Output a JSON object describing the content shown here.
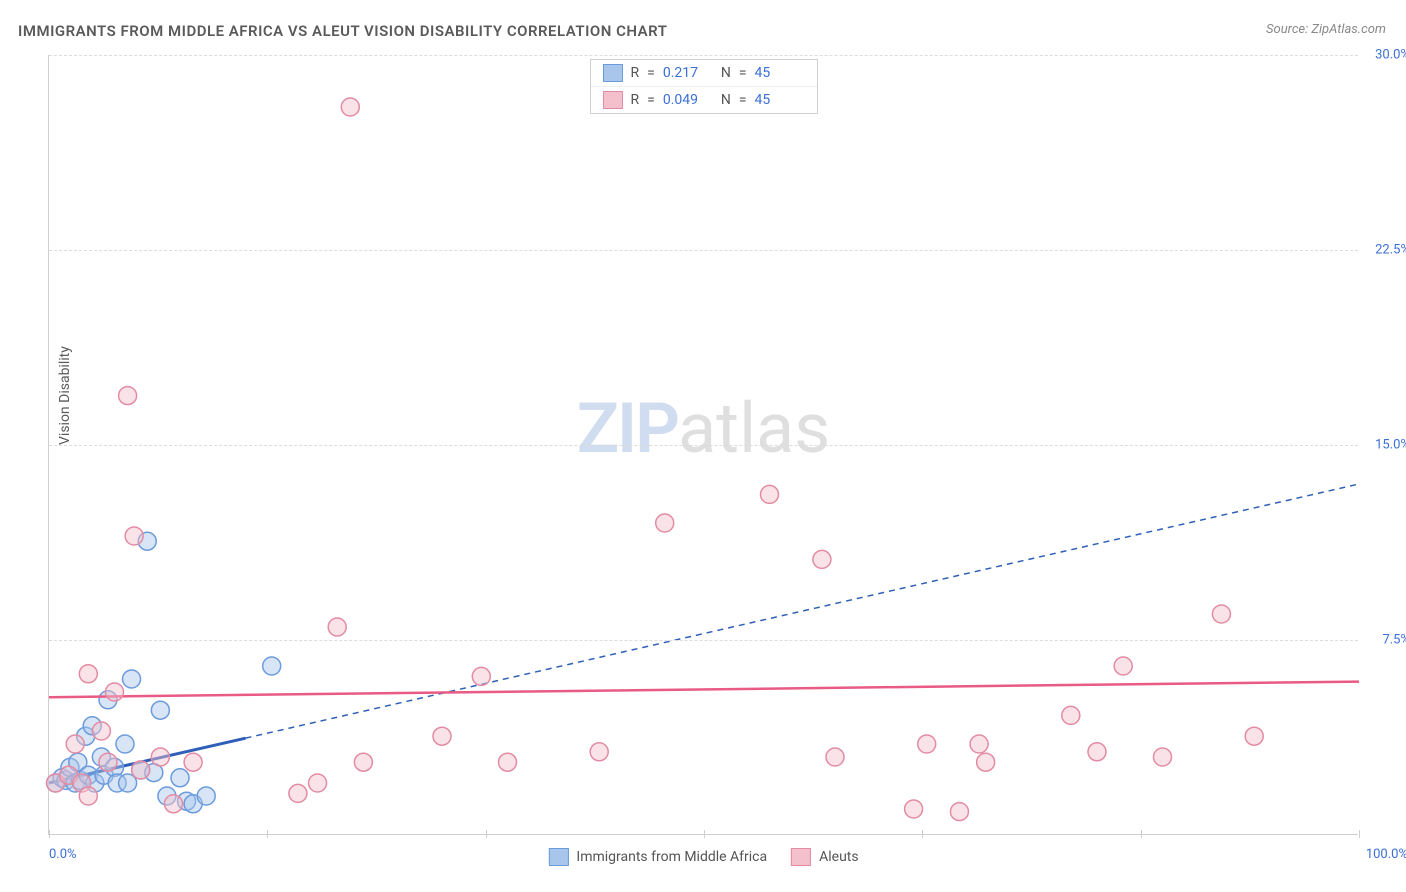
{
  "title": "IMMIGRANTS FROM MIDDLE AFRICA VS ALEUT VISION DISABILITY CORRELATION CHART",
  "source": "Source: ZipAtlas.com",
  "ylabel": "Vision Disability",
  "watermark": {
    "part1": "ZIP",
    "part2": "atlas"
  },
  "chart": {
    "type": "scatter",
    "xlim": [
      0,
      100
    ],
    "ylim": [
      0,
      30
    ],
    "xtick_labels": {
      "min": "0.0%",
      "max": "100.0%"
    },
    "xtick_positions": [
      0,
      16.67,
      33.33,
      50,
      66.67,
      83.33,
      100
    ],
    "ytick_labels": [
      "7.5%",
      "15.0%",
      "22.5%",
      "30.0%"
    ],
    "ytick_positions": [
      7.5,
      15,
      22.5,
      30
    ],
    "grid_color": "#dcdcdc",
    "axis_color": "#cfcfcf",
    "background_color": "#ffffff",
    "tick_label_color": "#3b6fd6",
    "axis_label_color": "#5a5a5a",
    "marker_radius": 9,
    "marker_stroke_width": 1.5,
    "marker_fill_opacity": 0.25
  },
  "series": [
    {
      "name": "Immigrants from Middle Africa",
      "color_fill": "#a8c5ec",
      "color_stroke": "#6b9bdc",
      "r": "0.217",
      "n": "45",
      "trend": {
        "x1": 0,
        "y1": 2.0,
        "x2": 100,
        "y2": 13.5,
        "solid_until_x": 15,
        "color": "#2f5fb8",
        "width": 2
      },
      "points": [
        [
          0.5,
          2.0
        ],
        [
          1.0,
          2.2
        ],
        [
          1.3,
          2.1
        ],
        [
          1.6,
          2.6
        ],
        [
          2.0,
          2.0
        ],
        [
          2.2,
          2.8
        ],
        [
          2.4,
          2.1
        ],
        [
          2.8,
          3.8
        ],
        [
          3.0,
          2.3
        ],
        [
          3.3,
          4.2
        ],
        [
          3.5,
          2.0
        ],
        [
          4.0,
          3.0
        ],
        [
          4.2,
          2.3
        ],
        [
          4.5,
          5.2
        ],
        [
          5.0,
          2.6
        ],
        [
          5.2,
          2.0
        ],
        [
          5.8,
          3.5
        ],
        [
          6.0,
          2.0
        ],
        [
          6.3,
          6.0
        ],
        [
          7.0,
          2.5
        ],
        [
          7.5,
          11.3
        ],
        [
          8.0,
          2.4
        ],
        [
          8.5,
          4.8
        ],
        [
          9.0,
          1.5
        ],
        [
          10.0,
          2.2
        ],
        [
          10.5,
          1.3
        ],
        [
          11.0,
          1.2
        ],
        [
          12.0,
          1.5
        ],
        [
          17.0,
          6.5
        ]
      ]
    },
    {
      "name": "Aleuts",
      "color_fill": "#f4c0cc",
      "color_stroke": "#e38ba3",
      "r": "0.049",
      "n": "45",
      "trend": {
        "x1": 0,
        "y1": 5.3,
        "x2": 100,
        "y2": 5.9,
        "color": "#e95a84",
        "width": 2.5
      },
      "points": [
        [
          0.5,
          2.0
        ],
        [
          1.5,
          2.3
        ],
        [
          2.0,
          3.5
        ],
        [
          2.5,
          2.0
        ],
        [
          3.0,
          6.2
        ],
        [
          3.0,
          1.5
        ],
        [
          4.0,
          4.0
        ],
        [
          4.5,
          2.8
        ],
        [
          5.0,
          5.5
        ],
        [
          6.0,
          16.9
        ],
        [
          6.5,
          11.5
        ],
        [
          7.0,
          2.5
        ],
        [
          8.5,
          3.0
        ],
        [
          9.5,
          1.2
        ],
        [
          11.0,
          2.8
        ],
        [
          19.0,
          1.6
        ],
        [
          20.5,
          2.0
        ],
        [
          22.0,
          8.0
        ],
        [
          23.0,
          28.0
        ],
        [
          24.0,
          2.8
        ],
        [
          30.0,
          3.8
        ],
        [
          33.0,
          6.1
        ],
        [
          35.0,
          2.8
        ],
        [
          42.0,
          3.2
        ],
        [
          47.0,
          12.0
        ],
        [
          55.0,
          13.1
        ],
        [
          59.0,
          10.6
        ],
        [
          60.0,
          3.0
        ],
        [
          66.0,
          1.0
        ],
        [
          67.0,
          3.5
        ],
        [
          69.5,
          0.9
        ],
        [
          71.0,
          3.5
        ],
        [
          71.5,
          2.8
        ],
        [
          78.0,
          4.6
        ],
        [
          80.0,
          3.2
        ],
        [
          82.0,
          6.5
        ],
        [
          85.0,
          3.0
        ],
        [
          89.5,
          8.5
        ],
        [
          92.0,
          3.8
        ]
      ]
    }
  ],
  "legend_labels": {
    "r_prefix": "R",
    "n_prefix": "N",
    "eq": "="
  }
}
